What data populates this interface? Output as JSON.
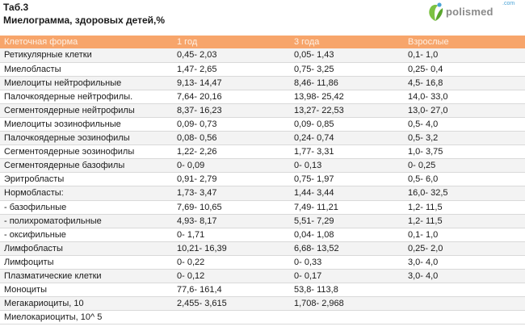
{
  "header": {
    "tab_number": "Таб.3",
    "title": "Миелограмма, здоровых детей,%"
  },
  "logo": {
    "text": "polismed",
    "suffix": ".com",
    "icon": "leaf-person-icon",
    "color_green": "#7cc242",
    "color_blue": "#4aa3d6"
  },
  "table": {
    "header_color": "#f7a56b",
    "columns": [
      "Клеточная форма",
      "1 год",
      "3 года",
      "Взрослые"
    ],
    "rows": [
      [
        "Ретикулярные клетки",
        "0,45- 2,03",
        "0,05- 1,43",
        "0,1- 1,0"
      ],
      [
        "Миелобласты",
        "1,47- 2,65",
        "0,75- 3,25",
        "0,25- 0,4"
      ],
      [
        "Миелоциты нейтрофильные",
        "9,13- 14,47",
        "8,46- 11,86",
        "4,5- 16,8"
      ],
      [
        "Палочкоядерные нейтрофилы.",
        "7,64- 20,16",
        "13,98- 25,42",
        "14,0- 33,0"
      ],
      [
        "Сегментоядерные нейтрофилы",
        "8,37- 16,23",
        "13,27- 22,53",
        "13,0- 27,0"
      ],
      [
        "Миелоциты эозинофильные",
        "0,09- 0,73",
        "0,09- 0,85",
        "0,5- 4,0"
      ],
      [
        "Палочкоядерные эозинофилы",
        "0,08- 0,56",
        "0,24- 0,74",
        "0,5- 3,2"
      ],
      [
        "Сегментоядерные эозинофилы",
        "1,22- 2,26",
        "1,77- 3,31",
        "1,0- 3,75"
      ],
      [
        "Сегментоядерные базофилы",
        "0- 0,09",
        "0- 0,13",
        "0- 0,25"
      ],
      [
        "Эритробласты",
        "0,91- 2,79",
        "0,75- 1,97",
        "0,5- 6,0"
      ],
      [
        "Нормобласты:",
        "1,73- 3,47",
        "1,44- 3,44",
        "16,0- 32,5"
      ],
      [
        "- базофильные",
        "7,69- 10,65",
        "7,49- 11,21",
        "1,2- 11,5"
      ],
      [
        "- полихроматофильные",
        "4,93- 8,17",
        "5,51- 7,29",
        "1,2- 11,5"
      ],
      [
        "- оксифильные",
        "0- 1,71",
        "0,04- 1,08",
        "0,1- 1,0"
      ],
      [
        "Лимфобласты",
        "10,21- 16,39",
        "6,68- 13,52",
        "0,25- 2,0"
      ],
      [
        "Лимфоциты",
        "0- 0,22",
        "0- 0,33",
        "3,0- 4,0"
      ],
      [
        "Плазматические клетки",
        "0- 0,12",
        "0- 0,17",
        "3,0- 4,0"
      ],
      [
        "Моноциты",
        "77,6- 161,4",
        "53,8- 113,8",
        ""
      ],
      [
        "Мегакариоциты, 10",
        "2,455- 3,615",
        "1,708- 2,968",
        ""
      ],
      [
        "Миелокариоциты, 10^ 5",
        "",
        "",
        ""
      ]
    ]
  }
}
